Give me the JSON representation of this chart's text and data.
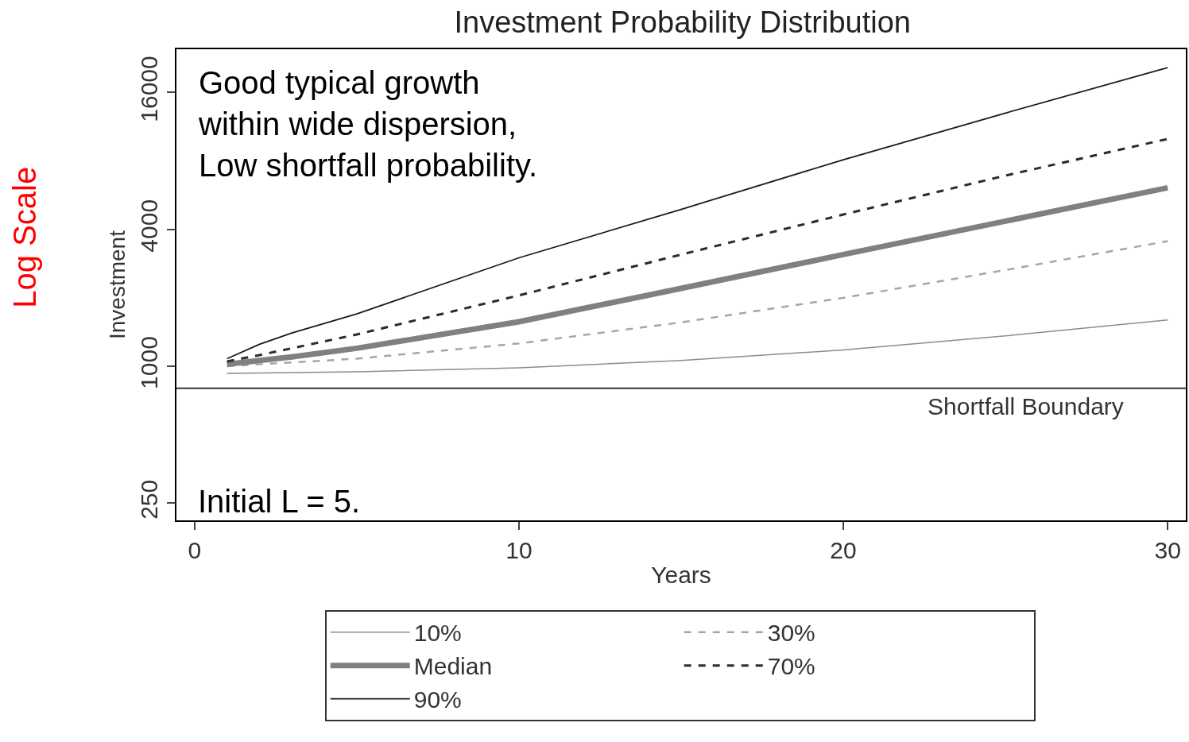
{
  "chart_data": {
    "type": "line",
    "title": "Investment Probability Distribution",
    "xlabel": "Years",
    "ylabel": "Investment",
    "log": true,
    "xlim": [
      -0.56,
      30.56
    ],
    "xticks": [
      0,
      10,
      20,
      30
    ],
    "ylim": [
      210,
      24800
    ],
    "yticks": [
      250,
      1000,
      4000,
      16000
    ],
    "legend": "bottom",
    "series": [
      {
        "name": "10%",
        "color": "#8c8c8c",
        "line_style": "solid",
        "x": [
          1,
          5,
          10,
          15,
          20,
          25,
          30
        ],
        "values": [
          930,
          945,
          985,
          1060,
          1180,
          1360,
          1600
        ]
      },
      {
        "name": "30%",
        "color": "#a6a6a6",
        "line_style": "dashed",
        "x": [
          1,
          2,
          5,
          10,
          15,
          20,
          25,
          30
        ],
        "values": [
          1000,
          1020,
          1080,
          1260,
          1560,
          2000,
          2650,
          3550
        ]
      },
      {
        "name": "Median",
        "color": "#808080",
        "line_style": "solid",
        "x": [
          1,
          2,
          3,
          5,
          10,
          15,
          20,
          25,
          30
        ],
        "values": [
          1020,
          1060,
          1100,
          1200,
          1570,
          2200,
          3100,
          4350,
          6100
        ]
      },
      {
        "name": "70%",
        "color": "#2b2b2b",
        "line_style": "dashed",
        "x": [
          1,
          2,
          3,
          5,
          10,
          15,
          20,
          25,
          30
        ],
        "values": [
          1050,
          1120,
          1200,
          1380,
          2050,
          3100,
          4650,
          6900,
          10000
        ]
      },
      {
        "name": "90%",
        "color": "#1a1a1a",
        "line_style": "solid",
        "x": [
          1,
          2,
          3,
          5,
          10,
          15,
          20,
          25,
          30
        ],
        "values": [
          1080,
          1250,
          1400,
          1700,
          3000,
          4900,
          8100,
          13000,
          20600
        ]
      }
    ],
    "ref_lines": [
      {
        "axis": "y",
        "value": 800,
        "label": "Shortfall Boundary",
        "color": "#333333"
      }
    ],
    "annotations": [
      "Good typical growth\nwithin wide dispersion,\nLow shortfall probability.",
      "Initial L = 5.",
      "Log Scale"
    ]
  }
}
